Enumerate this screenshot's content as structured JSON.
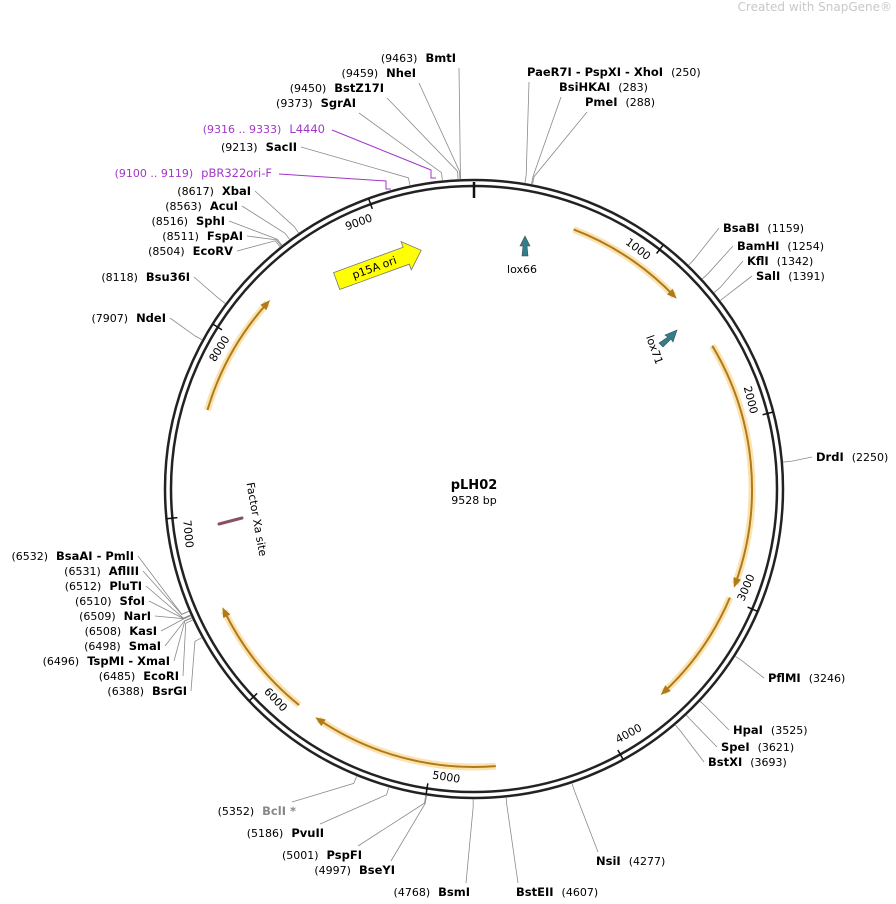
{
  "watermark": "Created with SnapGene®",
  "plasmid": {
    "name": "pLH02",
    "length": {
      "value": 9528,
      "label": "9528 bp"
    }
  },
  "ticks": [
    1000,
    2000,
    3000,
    4000,
    5000,
    6000,
    7000,
    8000,
    9000
  ],
  "features": [
    {
      "name": "p15A ori"
    },
    {
      "name": "lox66"
    },
    {
      "name": "lox71"
    },
    {
      "name": "Factor Xa site"
    }
  ],
  "primers": [
    {
      "range": "(9316 .. 9333)",
      "name": "L4440"
    },
    {
      "range": "(9100 .. 9119)",
      "name": "pBR322ori-F"
    }
  ],
  "enzymes": [
    {
      "name": "BmtI",
      "position": {
        "value": 9463,
        "label": "(9463)"
      }
    },
    {
      "name": "NheI",
      "position": {
        "value": 9459,
        "label": "(9459)"
      }
    },
    {
      "name": "BstZ17I",
      "position": {
        "value": 9450,
        "label": "(9450)"
      }
    },
    {
      "name": "SgrAI",
      "position": {
        "value": 9373,
        "label": "(9373)"
      }
    },
    {
      "name": "SacII",
      "position": {
        "value": 9213,
        "label": "(9213)"
      }
    },
    {
      "name": "XbaI",
      "position": {
        "value": 8617,
        "label": "(8617)"
      }
    },
    {
      "name": "AcuI",
      "position": {
        "value": 8563,
        "label": "(8563)"
      }
    },
    {
      "name": "SphI",
      "position": {
        "value": 8516,
        "label": "(8516)"
      }
    },
    {
      "name": "FspAI",
      "position": {
        "value": 8511,
        "label": "(8511)"
      }
    },
    {
      "name": "EcoRV",
      "position": {
        "value": 8504,
        "label": "(8504)"
      }
    },
    {
      "name": "Bsu36I",
      "position": {
        "value": 8118,
        "label": "(8118)"
      }
    },
    {
      "name": "NdeI",
      "position": {
        "value": 7907,
        "label": "(7907)"
      }
    },
    {
      "name": "BsaAI - PmlI",
      "position": {
        "value": 6532,
        "label": "(6532)"
      }
    },
    {
      "name": "AflIII",
      "position": {
        "value": 6531,
        "label": "(6531)"
      }
    },
    {
      "name": "PluTI",
      "position": {
        "value": 6512,
        "label": "(6512)"
      }
    },
    {
      "name": "SfoI",
      "position": {
        "value": 6510,
        "label": "(6510)"
      }
    },
    {
      "name": "NarI",
      "position": {
        "value": 6509,
        "label": "(6509)"
      }
    },
    {
      "name": "KasI",
      "position": {
        "value": 6508,
        "label": "(6508)"
      }
    },
    {
      "name": "SmaI",
      "position": {
        "value": 6498,
        "label": "(6498)"
      }
    },
    {
      "name": "TspMI - XmaI",
      "position": {
        "value": 6496,
        "label": "(6496)"
      }
    },
    {
      "name": "EcoRI",
      "position": {
        "value": 6485,
        "label": "(6485)"
      }
    },
    {
      "name": "BsrGI",
      "position": {
        "value": 6388,
        "label": "(6388)"
      }
    },
    {
      "name": "BclI *",
      "position": {
        "value": 5352,
        "label": "(5352)"
      },
      "color": "#888888"
    },
    {
      "name": "PvuII",
      "position": {
        "value": 5186,
        "label": "(5186)"
      }
    },
    {
      "name": "PspFI",
      "position": {
        "value": 5001,
        "label": "(5001)"
      }
    },
    {
      "name": "BseYI",
      "position": {
        "value": 4997,
        "label": "(4997)"
      }
    },
    {
      "name": "BsmI",
      "position": {
        "value": 4768,
        "label": "(4768)"
      }
    },
    {
      "name": "PaeR7I - PspXI - XhoI",
      "position": {
        "value": 250,
        "label": "(250)"
      }
    },
    {
      "name": "BsiHKAI",
      "position": {
        "value": 283,
        "label": "(283)"
      }
    },
    {
      "name": "PmeI",
      "position": {
        "value": 288,
        "label": "(288)"
      }
    },
    {
      "name": "BsaBI",
      "position": {
        "value": 1159,
        "label": "(1159)"
      }
    },
    {
      "name": "BamHI",
      "position": {
        "value": 1254,
        "label": "(1254)"
      }
    },
    {
      "name": "KflI",
      "position": {
        "value": 1342,
        "label": "(1342)"
      }
    },
    {
      "name": "SalI",
      "position": {
        "value": 1391,
        "label": "(1391)"
      }
    },
    {
      "name": "DrdI",
      "position": {
        "value": 2250,
        "label": "(2250)"
      }
    },
    {
      "name": "PflMI",
      "position": {
        "value": 3246,
        "label": "(3246)"
      }
    },
    {
      "name": "HpaI",
      "position": {
        "value": 3525,
        "label": "(3525)"
      }
    },
    {
      "name": "SpeI",
      "position": {
        "value": 3621,
        "label": "(3621)"
      }
    },
    {
      "name": "BstXI",
      "position": {
        "value": 3693,
        "label": "(3693)"
      }
    },
    {
      "name": "NsiI",
      "position": {
        "value": 4277,
        "label": "(4277)"
      }
    },
    {
      "name": "BstEII",
      "position": {
        "value": 4607,
        "label": "(4607)"
      }
    }
  ]
}
